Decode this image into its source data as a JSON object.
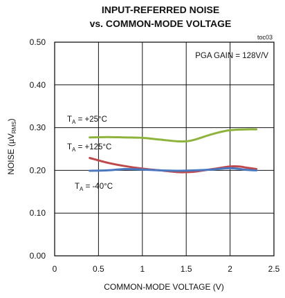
{
  "chart_data": {
    "type": "line",
    "title": "INPUT-REFERRED NOISE",
    "subtitle": "vs. COMMON-MODE VOLTAGE",
    "figure_id": "toc03",
    "xlabel": "COMMON-MODE VOLTAGE (V)",
    "ylabel": {
      "main": "NOISE (µV",
      "sub": "RMS",
      "end": ")"
    },
    "xlim": [
      0,
      2.5
    ],
    "ylim": [
      0,
      0.5
    ],
    "xticks": [
      "0",
      "0.5",
      "1",
      "1.5",
      "2",
      "2.5"
    ],
    "yticks": [
      "0.00",
      "0.10",
      "0.20",
      "0.30",
      "0.40",
      "0.50"
    ],
    "grid": true,
    "annotation": "PGA GAIN = 128V/V",
    "series": [
      {
        "label_main": "T",
        "label_sub": "A",
        "label_rest": " = +25°C",
        "color": "#8db33a",
        "x": [
          0.4,
          0.6,
          0.8,
          1.0,
          1.2,
          1.4,
          1.5,
          1.6,
          1.8,
          2.0,
          2.2,
          2.3
        ],
        "y": [
          0.277,
          0.278,
          0.277,
          0.276,
          0.272,
          0.268,
          0.268,
          0.272,
          0.285,
          0.294,
          0.296,
          0.296
        ]
      },
      {
        "label_main": "T",
        "label_sub": "A",
        "label_rest": " = +125°C",
        "color": "#c0484a",
        "x": [
          0.4,
          0.6,
          0.8,
          1.0,
          1.2,
          1.4,
          1.5,
          1.6,
          1.8,
          2.0,
          2.1,
          2.2,
          2.3
        ],
        "y": [
          0.229,
          0.218,
          0.21,
          0.204,
          0.2,
          0.196,
          0.196,
          0.197,
          0.203,
          0.209,
          0.209,
          0.206,
          0.203
        ]
      },
      {
        "label_main": "T",
        "label_sub": "A",
        "label_rest": " = -40°C",
        "color": "#4a78c0",
        "x": [
          0.4,
          0.6,
          0.8,
          1.0,
          1.2,
          1.4,
          1.6,
          1.8,
          2.0,
          2.2,
          2.3
        ],
        "y": [
          0.199,
          0.2,
          0.203,
          0.202,
          0.2,
          0.199,
          0.2,
          0.202,
          0.205,
          0.201,
          0.2
        ]
      }
    ]
  }
}
